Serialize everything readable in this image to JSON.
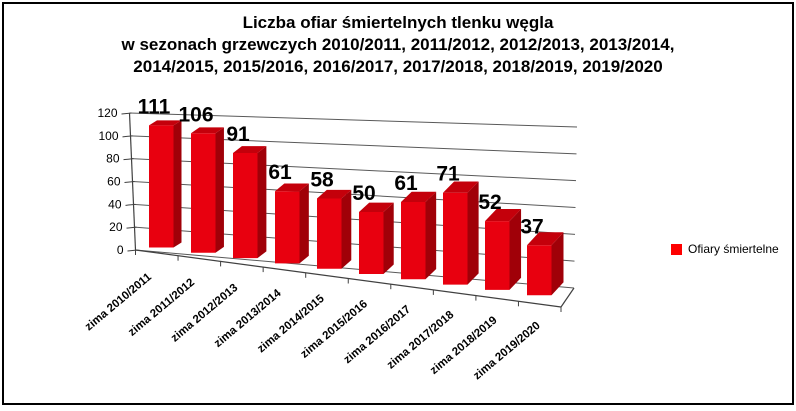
{
  "window": {
    "background": "#ffffff",
    "border_color": "#000000"
  },
  "title": {
    "line1": "Liczba ofiar śmiertelnych tlenku węgla",
    "line2": "w sezonach grzewczych 2010/2011, 2011/2012, 2012/2013, 2013/2014,",
    "line3": "2014/2015, 2015/2016, 2016/2017, 2017/2018, 2018/2019, 2019/2020"
  },
  "legend": {
    "label": "Ofiary śmiertelne",
    "swatch_color": "#fe0000",
    "position": "right"
  },
  "chart_data": {
    "type": "bar",
    "style": "3d-column",
    "title": "Liczba ofiar śmiertelnych tlenku węgla w sezonach grzewczych 2010/2011, 2011/2012, 2012/2013, 2013/2014, 2014/2015, 2015/2016, 2016/2017, 2017/2018, 2018/2019, 2019/2020",
    "categories": [
      "zima 2010/2011",
      "zima 2011/2012",
      "zima 2012/2013",
      "zima 2013/2014",
      "zima 2014/2015",
      "zima 2015/2016",
      "zima 2016/2017",
      "zima 2017/2018",
      "zima 2018/2019",
      "zima 2019/2020"
    ],
    "series": [
      {
        "name": "Ofiary śmiertelne",
        "values": [
          111,
          106,
          91,
          61,
          58,
          50,
          61,
          71,
          52,
          37
        ]
      }
    ],
    "data_labels": true,
    "xlabel": "",
    "ylabel": "",
    "ylim": [
      0,
      120
    ],
    "yticks": [
      0,
      20,
      40,
      60,
      80,
      100,
      120
    ],
    "grid": true,
    "legend_position": "right",
    "colors": {
      "bar_front": "#e8000f",
      "bar_side": "#a00008",
      "bar_top": "#c4000b",
      "gridline": "#595959",
      "axis": "#404040",
      "text": "#000000"
    }
  }
}
